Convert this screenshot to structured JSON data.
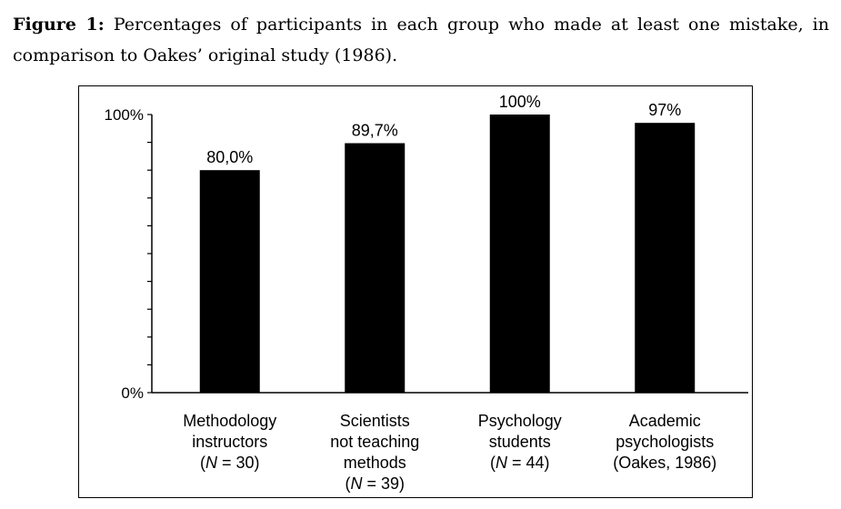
{
  "caption": {
    "lead": "Figure 1:",
    "text": " Percentages of participants in each group who made at least one mistake, in comparison to Oakes’ original study (1986)."
  },
  "chart_data": {
    "type": "bar",
    "categories": [
      [
        "Methodology",
        "instructors",
        "(N = 30)"
      ],
      [
        "Scientists",
        "not teaching",
        "methods",
        "(N = 39)"
      ],
      [
        "Psychology",
        "students",
        "(N = 44)"
      ],
      [
        "Academic",
        "psychologists",
        "(Oakes, 1986)"
      ]
    ],
    "values": [
      80.0,
      89.7,
      100,
      97
    ],
    "data_labels": [
      "80,0%",
      "89,7%",
      "100%",
      "97%"
    ],
    "y_tick_labels": [
      {
        "value": 100,
        "label": "100%"
      },
      {
        "value": 0,
        "label": "0%"
      }
    ],
    "ylim": [
      0,
      100
    ],
    "minor_ticks": 10,
    "grid": false,
    "bar_color": "#000000"
  }
}
